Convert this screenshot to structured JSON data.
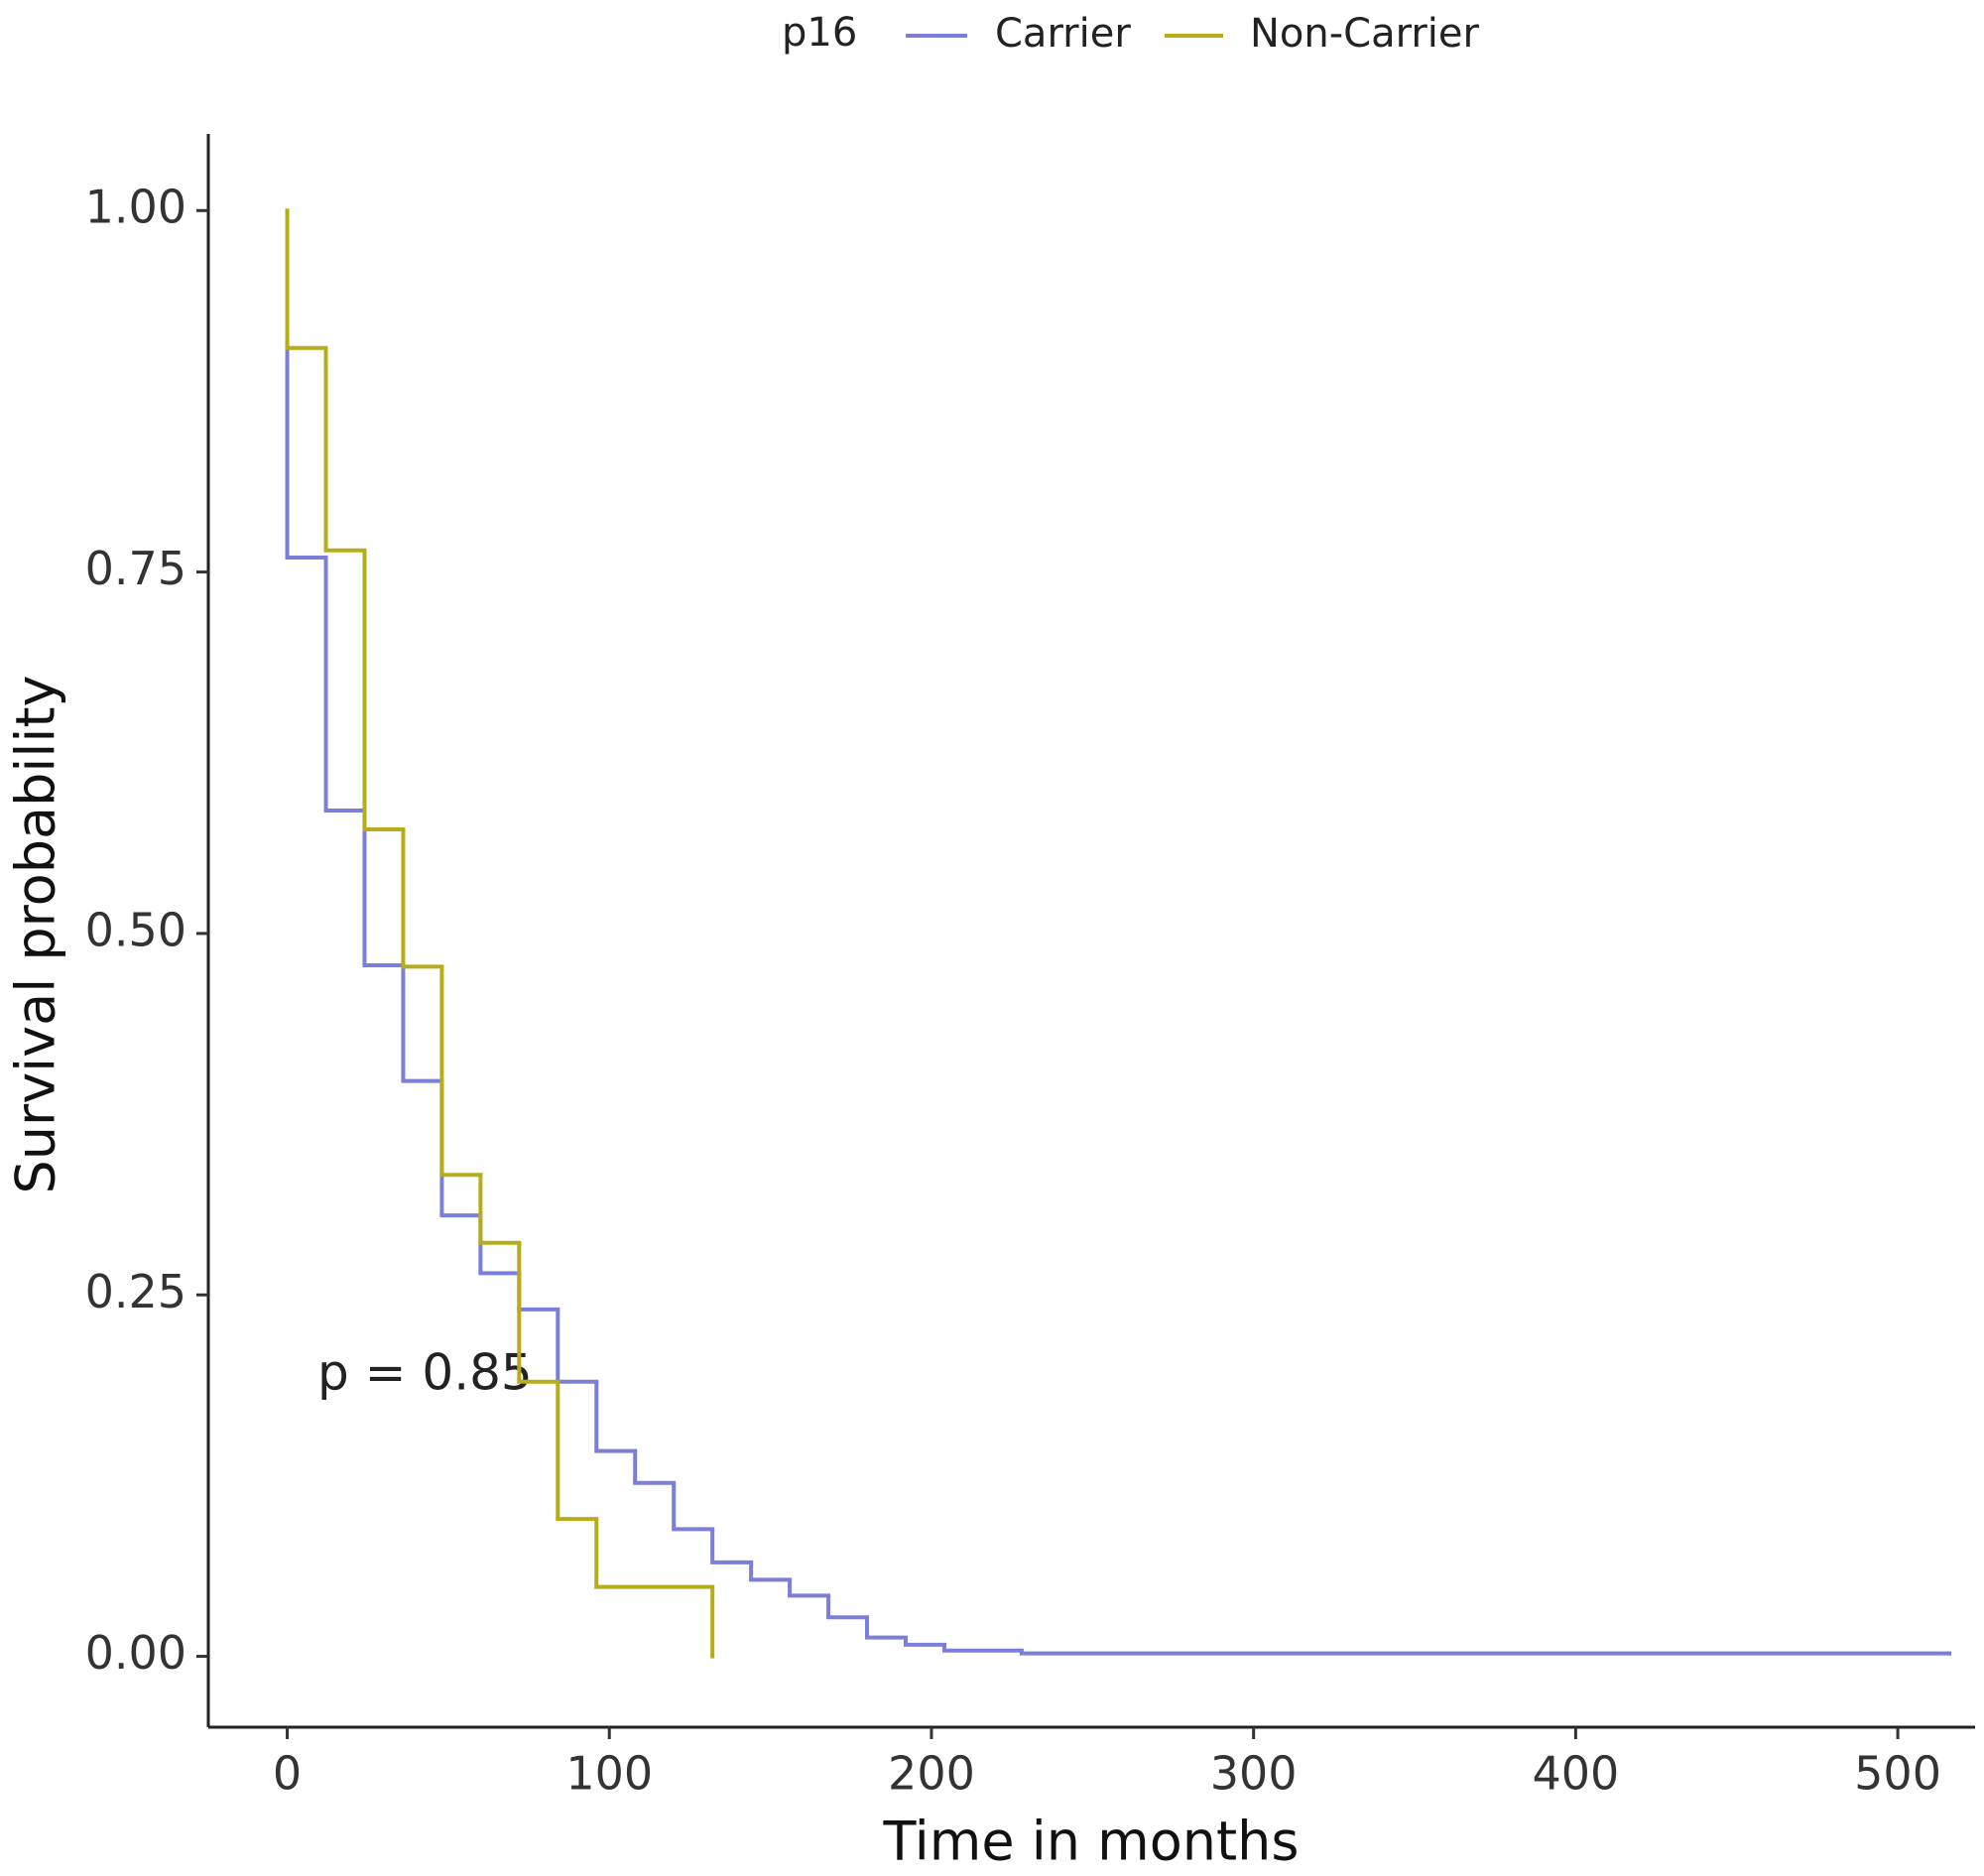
{
  "chart_data": {
    "type": "step",
    "legend_title": "p16",
    "x_label": "Time in months",
    "y_label": "Survival probability",
    "annotation": "p = 0.85",
    "xlim": [
      -24.5,
      524
    ],
    "ylim": [
      -0.049,
      1.053
    ],
    "xticks": [
      0,
      100,
      200,
      300,
      400,
      500
    ],
    "yticks": [
      {
        "value": 0,
        "label": "0.00"
      },
      {
        "value": 0.25,
        "label": "0.25"
      },
      {
        "value": 0.5,
        "label": "0.50"
      },
      {
        "value": 0.75,
        "label": "0.75"
      },
      {
        "value": 1,
        "label": "1.00"
      }
    ],
    "grid": false,
    "series": [
      {
        "name": "Carrier",
        "color": "#7b7fd9",
        "x": [
          0,
          0,
          12,
          24,
          36,
          48,
          60,
          72,
          84,
          96,
          108,
          120,
          132,
          144,
          156,
          168,
          180,
          192,
          204,
          228,
          516
        ],
        "values": [
          0.91,
          0.76,
          0.585,
          0.478,
          0.398,
          0.305,
          0.265,
          0.24,
          0.19,
          0.142,
          0.12,
          0.088,
          0.065,
          0.053,
          0.042,
          0.027,
          0.013,
          0.008,
          0.004,
          0.002,
          0.002
        ]
      },
      {
        "name": "Non-Carrier",
        "color": "#b5ad1a",
        "x": [
          0,
          0,
          12,
          24,
          36,
          48,
          60,
          72,
          84,
          96,
          132
        ],
        "values": [
          1,
          0.905,
          0.765,
          0.572,
          0.477,
          0.333,
          0.286,
          0.19,
          0.095,
          0.048,
          0
        ]
      }
    ]
  }
}
